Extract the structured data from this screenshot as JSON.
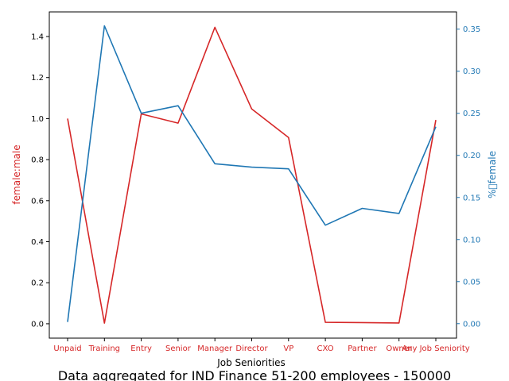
{
  "chart_data": {
    "type": "line",
    "xlabel": "Job Seniorities",
    "caption": "Data aggregated for IND Finance 51-200 employees - 150000",
    "categories": [
      "Unpaid",
      "Training",
      "Entry",
      "Senior",
      "Manager",
      "Director",
      "VP",
      "CXO",
      "Partner",
      "Owner",
      "Any Job Seniority"
    ],
    "left_axis": {
      "label": "female:male",
      "color": "#d62728",
      "ylim": [
        -0.07,
        1.52
      ],
      "ticks": [
        0.0,
        0.2,
        0.4,
        0.6,
        0.8,
        1.0,
        1.2,
        1.4
      ]
    },
    "right_axis": {
      "label": "%\u0000female",
      "color": "#1f77b4",
      "ylim": [
        -0.0172,
        0.3705
      ],
      "ticks": [
        0.0,
        0.05,
        0.1,
        0.15,
        0.2,
        0.25,
        0.3,
        0.35
      ]
    },
    "series": [
      {
        "axis": "left",
        "color": "#d62728",
        "values": [
          1.0,
          0.003,
          1.023,
          0.978,
          1.445,
          1.047,
          0.908,
          0.007,
          0.006,
          0.004,
          0.993
        ]
      },
      {
        "axis": "right",
        "color": "#1f77b4",
        "values": [
          0.002,
          0.354,
          0.25,
          0.259,
          0.19,
          0.186,
          0.184,
          0.117,
          0.137,
          0.131,
          0.234
        ]
      }
    ],
    "grid": false
  }
}
